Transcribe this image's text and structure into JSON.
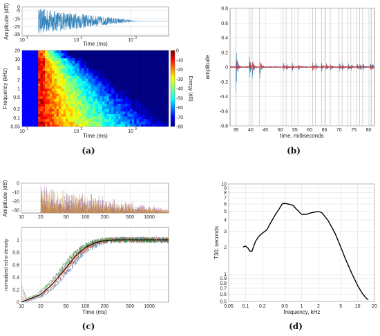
{
  "chart_data": [
    {
      "panel": "(a)",
      "type": "line",
      "subplots": [
        {
          "type": "line",
          "xlabel": "Time (ms)",
          "ylabel": "Amplitude (dB)",
          "xscale": "log",
          "xlim": [
            10,
            5000
          ],
          "ylim": [
            -37,
            0
          ],
          "xticks": [
            "10",
            "10",
            "10"
          ],
          "xtick_exps": [
            "1",
            "2",
            "3"
          ],
          "yticks": [
            "0",
            "-5",
            "-15",
            "-25",
            "-35"
          ],
          "onset_ms": 20,
          "series": [
            {
              "decay_db_per_decade": 20,
              "color": "#1f77b4"
            }
          ]
        },
        {
          "type": "heatmap",
          "xlabel": "Time (ms)",
          "ylabel": "Frequency (kHz)",
          "colorbar_label": "Energy (dB)",
          "xscale": "log",
          "yscale": "log",
          "xlim": [
            10,
            5000
          ],
          "ylim": [
            0.05,
            20
          ],
          "clim": [
            -80,
            0
          ],
          "xticks": [
            "10",
            "10",
            "10"
          ],
          "xtick_exps": [
            "1",
            "2",
            "3"
          ],
          "yticks": [
            "20",
            "10",
            "5",
            "2",
            "1",
            "0.5",
            "0.2",
            "0.1",
            "0.05"
          ],
          "colorbar_ticks": [
            "0",
            "-10",
            "-20",
            "-30",
            "-40",
            "-50",
            "-60",
            "-70",
            "-80"
          ],
          "onset_ms": 20
        }
      ]
    },
    {
      "panel": "(b)",
      "type": "line",
      "xlabel": "time, milliseconds",
      "ylabel": "amplitude",
      "xlim": [
        33,
        82
      ],
      "ylim": [
        -0.8,
        0.8
      ],
      "xticks": [
        "35",
        "40",
        "45",
        "50",
        "55",
        "60",
        "65",
        "70",
        "75",
        "80"
      ],
      "yticks": [
        "0.8",
        "0.6",
        "0.4",
        "0.2",
        "0",
        "-0.2",
        "-0.4",
        "-0.6",
        "-0.8"
      ],
      "reflection_markers_ms": [
        35,
        39.5,
        40.5,
        43,
        51,
        52,
        54,
        56,
        61,
        62,
        64,
        65.5,
        67,
        70,
        71,
        73,
        74,
        76,
        77,
        78,
        80.5,
        81
      ],
      "series": [
        {
          "color": "#1f77b4",
          "role": "measured"
        },
        {
          "color": "#d62728",
          "role": "simulated"
        }
      ]
    },
    {
      "panel": "(c)",
      "type": "line",
      "subplots": [
        {
          "type": "line",
          "ylabel": "Amplitude (dB)",
          "xscale": "log",
          "xlim": [
            10,
            2000
          ],
          "ylim": [
            -33,
            0
          ],
          "xticks": [
            "10",
            "20",
            "50",
            "100",
            "200",
            "500",
            "1000"
          ],
          "yticks": [
            "0",
            "-10",
            "-20",
            "-30"
          ],
          "onset_ms": 20,
          "series": [
            {
              "color": "#7b4b94"
            },
            {
              "color": "#e0a030"
            }
          ]
        },
        {
          "type": "line",
          "xlabel": "Time (ms)",
          "ylabel": "normalized echo density",
          "xscale": "log",
          "xlim": [
            10,
            2000
          ],
          "ylim": [
            0,
            1.2
          ],
          "xticks": [
            "10",
            "20",
            "50",
            "100",
            "200",
            "500",
            "1000"
          ],
          "yticks": [
            "0",
            "0.2",
            "0.4",
            "0.6",
            "0.8",
            "1"
          ],
          "series": [
            {
              "role": "reference",
              "color": "#000000",
              "x": [
                10,
                20,
                30,
                50,
                70,
                100,
                150,
                200,
                300,
                500,
                1000,
                2000
              ],
              "y": [
                0,
                0.12,
                0.28,
                0.55,
                0.74,
                0.88,
                0.96,
                0.99,
                1.0,
                1.0,
                1.0,
                1.0
              ]
            },
            {
              "color": "#1f77b4"
            },
            {
              "color": "#d62728"
            },
            {
              "color": "#e0a030"
            },
            {
              "color": "#7b4b94"
            },
            {
              "color": "#2ca02c"
            }
          ]
        }
      ]
    },
    {
      "panel": "(d)",
      "type": "line",
      "xlabel": "frequency, kHz",
      "ylabel": "T30, seconds",
      "xscale": "log",
      "yscale": "log",
      "xlim": [
        0.05,
        20
      ],
      "ylim": [
        0.5,
        10
      ],
      "xticks": [
        "0.05",
        "0.1",
        "0.2",
        "0.5",
        "1",
        "2",
        "5",
        "10",
        "20"
      ],
      "yticks": [
        "10",
        "9",
        "8",
        "7",
        "6",
        "5",
        "4",
        "3",
        "2",
        "1",
        "0.9",
        "0.8",
        "0.7",
        "0.6",
        "0.5"
      ],
      "series": [
        {
          "color": "#000000",
          "x": [
            0.09,
            0.1,
            0.11,
            0.12,
            0.13,
            0.15,
            0.17,
            0.2,
            0.24,
            0.3,
            0.35,
            0.4,
            0.45,
            0.5,
            0.6,
            0.7,
            0.8,
            1.0,
            1.2,
            1.5,
            2.0,
            2.3,
            3.0,
            4.0,
            5.0,
            6.0,
            8.0,
            10.0,
            12.0,
            14.0,
            15.5
          ],
          "y": [
            2.0,
            2.05,
            1.95,
            1.8,
            1.8,
            2.3,
            2.6,
            2.85,
            3.1,
            4.0,
            4.7,
            5.3,
            6.0,
            6.1,
            5.95,
            5.8,
            5.3,
            4.6,
            4.6,
            4.8,
            4.95,
            4.8,
            3.9,
            2.8,
            2.0,
            1.5,
            1.0,
            0.75,
            0.62,
            0.55,
            0.52
          ]
        }
      ]
    }
  ]
}
